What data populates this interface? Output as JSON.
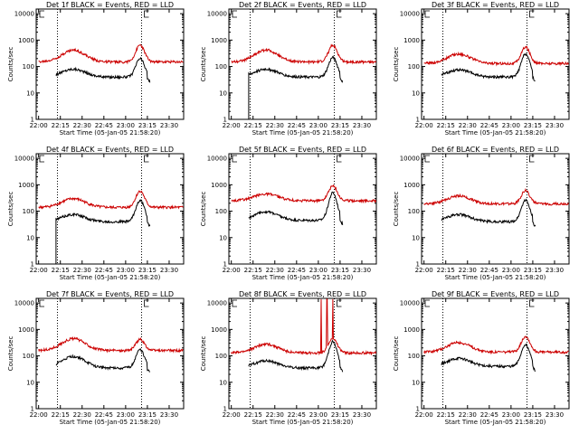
{
  "figure": {
    "x_tick_labels": [
      "22:00",
      "22:15",
      "22:30",
      "22:45",
      "23:00",
      "23:15",
      "23:30"
    ],
    "y_tick_labels": [
      "1",
      "10",
      "100",
      "1000",
      "10000"
    ],
    "ylabel": "Counts/sec",
    "xlabel": "Start Time (05-Jan-05 21:58:20)",
    "panel_title_suffix": "BLACK = Events, RED = LLD",
    "colors": {
      "events": "#000000",
      "lld": "#cc0000",
      "frame": "#000000",
      "background": "#ffffff"
    }
  },
  "chart_data": [
    {
      "type": "line",
      "title": "Det 1f BLACK = Events, RED = LLD",
      "xlabel": "Start Time (05-Jan-05 21:58:20)",
      "ylabel": "Counts/sec",
      "x_range_minutes": [
        0,
        100
      ],
      "ylim": [
        1,
        10000
      ],
      "yscale": "log",
      "x_ticks": [
        "22:00",
        "22:15",
        "22:30",
        "22:45",
        "23:00",
        "23:15",
        "23:30"
      ],
      "markers": [
        "22:13",
        "23:11"
      ],
      "series": [
        {
          "name": "Events",
          "color": "#000000",
          "start_minute": 12,
          "end_minute": 77,
          "base": 40,
          "bump1": {
            "peak_minute": 24,
            "peak": 80
          },
          "bump2": {
            "peak_minute": 70,
            "peak": 200
          },
          "sharp_start": false
        },
        {
          "name": "LLD",
          "color": "#cc0000",
          "start_minute": 0,
          "end_minute": 100,
          "base": 150,
          "bump1": {
            "peak_minute": 24,
            "peak": 420
          },
          "bump2": {
            "peak_minute": 70,
            "peak": 650
          },
          "spikes": []
        }
      ]
    },
    {
      "type": "line",
      "title": "Det 2f BLACK = Events, RED = LLD",
      "xlabel": "Start Time (05-Jan-05 21:58:20)",
      "ylabel": "Counts/sec",
      "x_range_minutes": [
        0,
        100
      ],
      "ylim": [
        1,
        10000
      ],
      "yscale": "log",
      "x_ticks": [
        "22:00",
        "22:15",
        "22:30",
        "22:45",
        "23:00",
        "23:15",
        "23:30"
      ],
      "markers": [
        "22:13",
        "23:11"
      ],
      "series": [
        {
          "name": "Events",
          "color": "#000000",
          "start_minute": 12,
          "end_minute": 77,
          "base": 40,
          "bump1": {
            "peak_minute": 24,
            "peak": 80
          },
          "bump2": {
            "peak_minute": 70,
            "peak": 220
          },
          "sharp_start": true
        },
        {
          "name": "LLD",
          "color": "#cc0000",
          "start_minute": 0,
          "end_minute": 100,
          "base": 150,
          "bump1": {
            "peak_minute": 24,
            "peak": 420
          },
          "bump2": {
            "peak_minute": 70,
            "peak": 650
          },
          "spikes": []
        }
      ]
    },
    {
      "type": "line",
      "title": "Det 3f BLACK = Events, RED = LLD",
      "xlabel": "Start Time (05-Jan-05 21:58:20)",
      "ylabel": "Counts/sec",
      "x_range_minutes": [
        0,
        100
      ],
      "ylim": [
        1,
        10000
      ],
      "yscale": "log",
      "x_ticks": [
        "22:00",
        "22:15",
        "22:30",
        "22:45",
        "23:00",
        "23:15",
        "23:30"
      ],
      "markers": [
        "22:13",
        "23:11"
      ],
      "series": [
        {
          "name": "Events",
          "color": "#000000",
          "start_minute": 12,
          "end_minute": 77,
          "base": 40,
          "bump1": {
            "peak_minute": 24,
            "peak": 75
          },
          "bump2": {
            "peak_minute": 70,
            "peak": 300
          },
          "sharp_start": false
        },
        {
          "name": "LLD",
          "color": "#cc0000",
          "start_minute": 0,
          "end_minute": 100,
          "base": 130,
          "bump1": {
            "peak_minute": 24,
            "peak": 300
          },
          "bump2": {
            "peak_minute": 70,
            "peak": 550
          },
          "spikes": []
        }
      ]
    },
    {
      "type": "line",
      "title": "Det 4f BLACK = Events, RED = LLD",
      "xlabel": "Start Time (05-Jan-05 21:58:20)",
      "ylabel": "Counts/sec",
      "x_range_minutes": [
        0,
        100
      ],
      "ylim": [
        1,
        10000
      ],
      "yscale": "log",
      "x_ticks": [
        "22:00",
        "22:15",
        "22:30",
        "22:45",
        "23:00",
        "23:15",
        "23:30"
      ],
      "markers": [
        "22:13",
        "23:11"
      ],
      "series": [
        {
          "name": "Events",
          "color": "#000000",
          "start_minute": 12,
          "end_minute": 77,
          "base": 40,
          "bump1": {
            "peak_minute": 24,
            "peak": 75
          },
          "bump2": {
            "peak_minute": 70,
            "peak": 260
          },
          "sharp_start": true
        },
        {
          "name": "LLD",
          "color": "#cc0000",
          "start_minute": 0,
          "end_minute": 100,
          "base": 140,
          "bump1": {
            "peak_minute": 24,
            "peak": 300
          },
          "bump2": {
            "peak_minute": 70,
            "peak": 580
          },
          "spikes": []
        }
      ]
    },
    {
      "type": "line",
      "title": "Det 5f BLACK = Events, RED = LLD",
      "xlabel": "Start Time (05-Jan-05 21:58:20)",
      "ylabel": "Counts/sec",
      "x_range_minutes": [
        0,
        100
      ],
      "ylim": [
        1,
        10000
      ],
      "yscale": "log",
      "x_ticks": [
        "22:00",
        "22:15",
        "22:30",
        "22:45",
        "23:00",
        "23:15",
        "23:30"
      ],
      "markers": [
        "22:13",
        "23:11"
      ],
      "series": [
        {
          "name": "Events",
          "color": "#000000",
          "start_minute": 12,
          "end_minute": 77,
          "base": 45,
          "bump1": {
            "peak_minute": 24,
            "peak": 95
          },
          "bump2": {
            "peak_minute": 70,
            "peak": 500
          },
          "sharp_start": false
        },
        {
          "name": "LLD",
          "color": "#cc0000",
          "start_minute": 0,
          "end_minute": 100,
          "base": 250,
          "bump1": {
            "peak_minute": 24,
            "peak": 450
          },
          "bump2": {
            "peak_minute": 70,
            "peak": 900
          },
          "spikes": []
        }
      ]
    },
    {
      "type": "line",
      "title": "Det 6f BLACK = Events, RED = LLD",
      "xlabel": "Start Time (05-Jan-05 21:58:20)",
      "ylabel": "Counts/sec",
      "x_range_minutes": [
        0,
        100
      ],
      "ylim": [
        1,
        10000
      ],
      "yscale": "log",
      "x_ticks": [
        "22:00",
        "22:15",
        "22:30",
        "22:45",
        "23:00",
        "23:15",
        "23:30"
      ],
      "markers": [
        "22:13",
        "23:11"
      ],
      "series": [
        {
          "name": "Events",
          "color": "#000000",
          "start_minute": 12,
          "end_minute": 77,
          "base": 40,
          "bump1": {
            "peak_minute": 24,
            "peak": 75
          },
          "bump2": {
            "peak_minute": 70,
            "peak": 260
          },
          "sharp_start": false
        },
        {
          "name": "LLD",
          "color": "#cc0000",
          "start_minute": 0,
          "end_minute": 100,
          "base": 190,
          "bump1": {
            "peak_minute": 24,
            "peak": 380
          },
          "bump2": {
            "peak_minute": 70,
            "peak": 600
          },
          "spikes": []
        }
      ]
    },
    {
      "type": "line",
      "title": "Det 7f BLACK = Events, RED = LLD",
      "xlabel": "Start Time (05-Jan-05 21:58:20)",
      "ylabel": "Counts/sec",
      "x_range_minutes": [
        0,
        100
      ],
      "ylim": [
        1,
        10000
      ],
      "yscale": "log",
      "x_ticks": [
        "22:00",
        "22:15",
        "22:30",
        "22:45",
        "23:00",
        "23:15",
        "23:30"
      ],
      "markers": [
        "22:13",
        "23:11"
      ],
      "series": [
        {
          "name": "Events",
          "color": "#000000",
          "start_minute": 12,
          "end_minute": 77,
          "base": 35,
          "bump1": {
            "peak_minute": 24,
            "peak": 95
          },
          "bump2": {
            "peak_minute": 70,
            "peak": 170
          },
          "sharp_start": false
        },
        {
          "name": "LLD",
          "color": "#cc0000",
          "start_minute": 0,
          "end_minute": 100,
          "base": 160,
          "bump1": {
            "peak_minute": 24,
            "peak": 450
          },
          "bump2": {
            "peak_minute": 70,
            "peak": 420
          },
          "spikes": []
        }
      ]
    },
    {
      "type": "line",
      "title": "Det 8f BLACK = Events, RED = LLD",
      "xlabel": "Start Time (05-Jan-05 21:58:20)",
      "ylabel": "Counts/sec",
      "x_range_minutes": [
        0,
        100
      ],
      "ylim": [
        1,
        10000
      ],
      "yscale": "log",
      "x_ticks": [
        "22:00",
        "22:15",
        "22:30",
        "22:45",
        "23:00",
        "23:15",
        "23:30"
      ],
      "markers": [
        "22:13",
        "23:11"
      ],
      "series": [
        {
          "name": "Events",
          "color": "#000000",
          "start_minute": 12,
          "end_minute": 77,
          "base": 35,
          "bump1": {
            "peak_minute": 24,
            "peak": 65
          },
          "bump2": {
            "peak_minute": 70,
            "peak": 350
          },
          "sharp_start": false
        },
        {
          "name": "LLD",
          "color": "#cc0000",
          "start_minute": 0,
          "end_minute": 100,
          "base": 130,
          "bump1": {
            "peak_minute": 24,
            "peak": 280
          },
          "bump2": {
            "peak_minute": 70,
            "peak": 450
          },
          "spikes": [
            62,
            66,
            70
          ]
        }
      ]
    },
    {
      "type": "line",
      "title": "Det 9f BLACK = Events, RED = LLD",
      "xlabel": "Start Time (05-Jan-05 21:58:20)",
      "ylabel": "Counts/sec",
      "x_range_minutes": [
        0,
        100
      ],
      "ylim": [
        1,
        10000
      ],
      "yscale": "log",
      "x_ticks": [
        "22:00",
        "22:15",
        "22:30",
        "22:45",
        "23:00",
        "23:15",
        "23:30"
      ],
      "markers": [
        "22:13",
        "23:11"
      ],
      "series": [
        {
          "name": "Events",
          "color": "#000000",
          "start_minute": 12,
          "end_minute": 77,
          "base": 40,
          "bump1": {
            "peak_minute": 24,
            "peak": 80
          },
          "bump2": {
            "peak_minute": 70,
            "peak": 270
          },
          "sharp_start": false
        },
        {
          "name": "LLD",
          "color": "#cc0000",
          "start_minute": 0,
          "end_minute": 100,
          "base": 140,
          "bump1": {
            "peak_minute": 24,
            "peak": 320
          },
          "bump2": {
            "peak_minute": 70,
            "peak": 550
          },
          "spikes": []
        }
      ]
    }
  ]
}
